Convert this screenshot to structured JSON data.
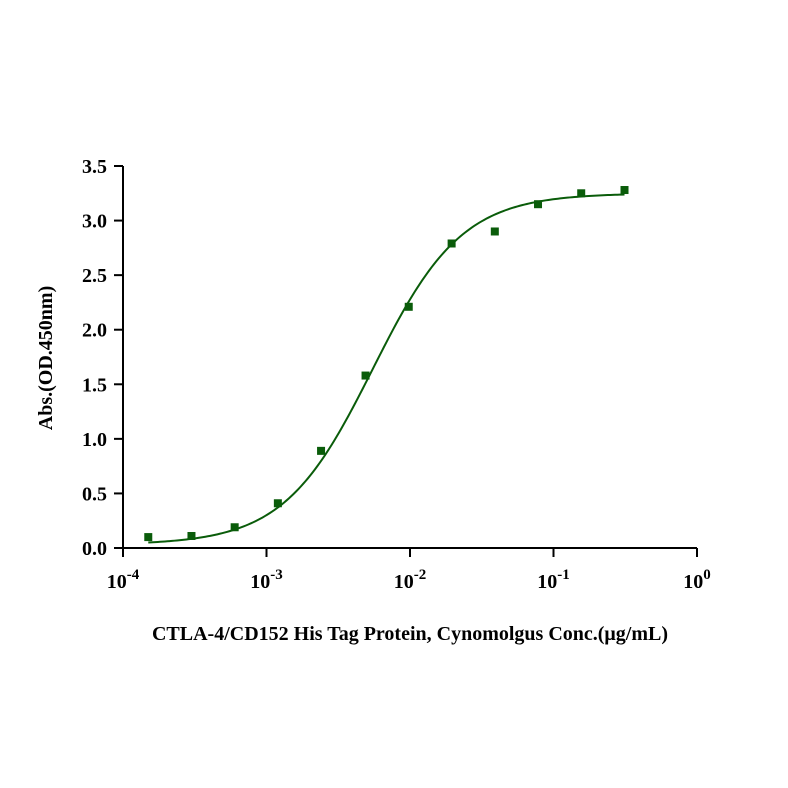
{
  "chart_data": {
    "type": "scatter",
    "title": "",
    "xlabel": "CTLA-4/CD152 His Tag Protein, Cynomolgus Conc.(μg/mL)",
    "ylabel": "Abs.(OD.450nm)",
    "xscale": "log",
    "xlim": [
      0.0001,
      1
    ],
    "ylim": [
      0,
      3.5
    ],
    "x_ticks": [
      {
        "base": "10",
        "exp": "-4"
      },
      {
        "base": "10",
        "exp": "-3"
      },
      {
        "base": "10",
        "exp": "-2"
      },
      {
        "base": "10",
        "exp": "-1"
      },
      {
        "base": "10",
        "exp": "0"
      }
    ],
    "y_ticks": [
      "0.0",
      "0.5",
      "1.0",
      "1.5",
      "2.0",
      "2.5",
      "3.0",
      "3.5"
    ],
    "grid": false,
    "legend": "none",
    "series": [
      {
        "marker": "square",
        "color": "#0a5c0a",
        "x": [
          0.00015,
          0.0003,
          0.0006,
          0.0012,
          0.0024,
          0.0049,
          0.0098,
          0.0195,
          0.039,
          0.078,
          0.156,
          0.3125
        ],
        "y": [
          0.1,
          0.11,
          0.19,
          0.41,
          0.89,
          1.58,
          2.21,
          2.79,
          2.9,
          3.15,
          3.25,
          3.28
        ]
      }
    ],
    "fit_curve": {
      "model": "4PL",
      "color": "#0a5c0a",
      "x_range": [
        0.00015,
        0.3125
      ],
      "bottom": 0.03,
      "top": 3.25,
      "ec50": 0.0055,
      "hill": 1.4
    }
  }
}
